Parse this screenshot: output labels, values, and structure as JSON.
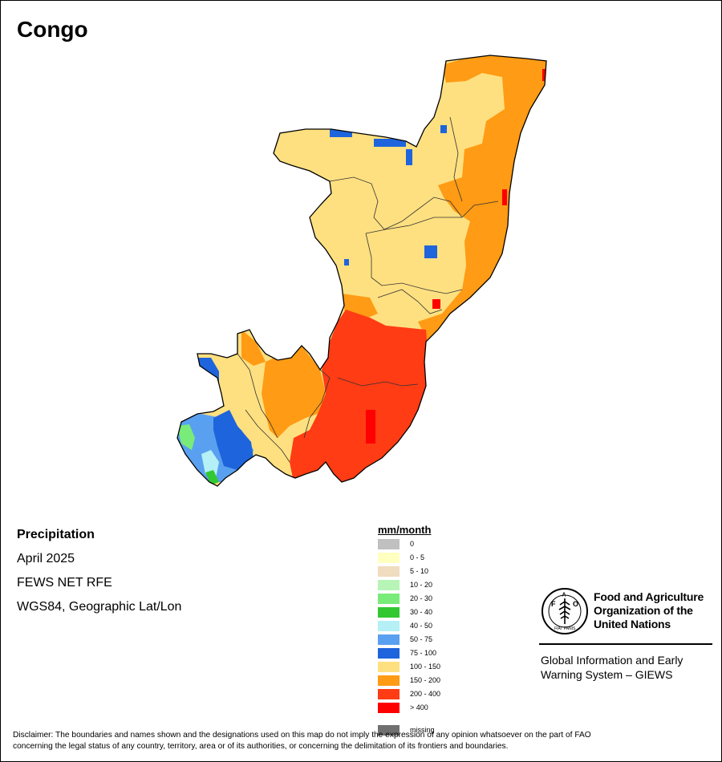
{
  "map": {
    "title": "Congo",
    "variable": "Precipitation",
    "period": "April 2025",
    "source": "FEWS NET RFE",
    "projection": "WGS84, Geographic Lat/Lon"
  },
  "legend": {
    "title": "mm/month",
    "items": [
      {
        "label": "0",
        "color": "#c0c0c0"
      },
      {
        "label": "0 - 5",
        "color": "#ffffc0"
      },
      {
        "label": "5 - 10",
        "color": "#f0dcbe"
      },
      {
        "label": "10 - 20",
        "color": "#b6f5b6"
      },
      {
        "label": "20 - 30",
        "color": "#78eb78"
      },
      {
        "label": "30 - 40",
        "color": "#32c832"
      },
      {
        "label": "40 - 50",
        "color": "#b4f0f5"
      },
      {
        "label": "50 - 75",
        "color": "#5aa0f0"
      },
      {
        "label": "75 - 100",
        "color": "#1e64dc"
      },
      {
        "label": "100 - 150",
        "color": "#ffe080"
      },
      {
        "label": "150 - 200",
        "color": "#ff9b14"
      },
      {
        "label": "200 - 400",
        "color": "#ff3c14"
      },
      {
        "label": "> 400",
        "color": "#ff0000"
      },
      {
        "label": "missing",
        "color": "#707070"
      }
    ]
  },
  "organization": {
    "name": "Food and Agriculture Organization of the United Nations",
    "logo_letters": "FAO",
    "logo_motto": "FIAT PANIS",
    "system_name": "Global Information and Early Warning System – GIEWS"
  },
  "disclaimer": "Disclaimer: The boundaries and names shown and the designations used on this map do not imply the expression of any opinion whatsoever on the part of FAO concerning the legal status of any country, territory, area or of its authorities, or concerning the delimitation of its frontiers and boundaries."
}
